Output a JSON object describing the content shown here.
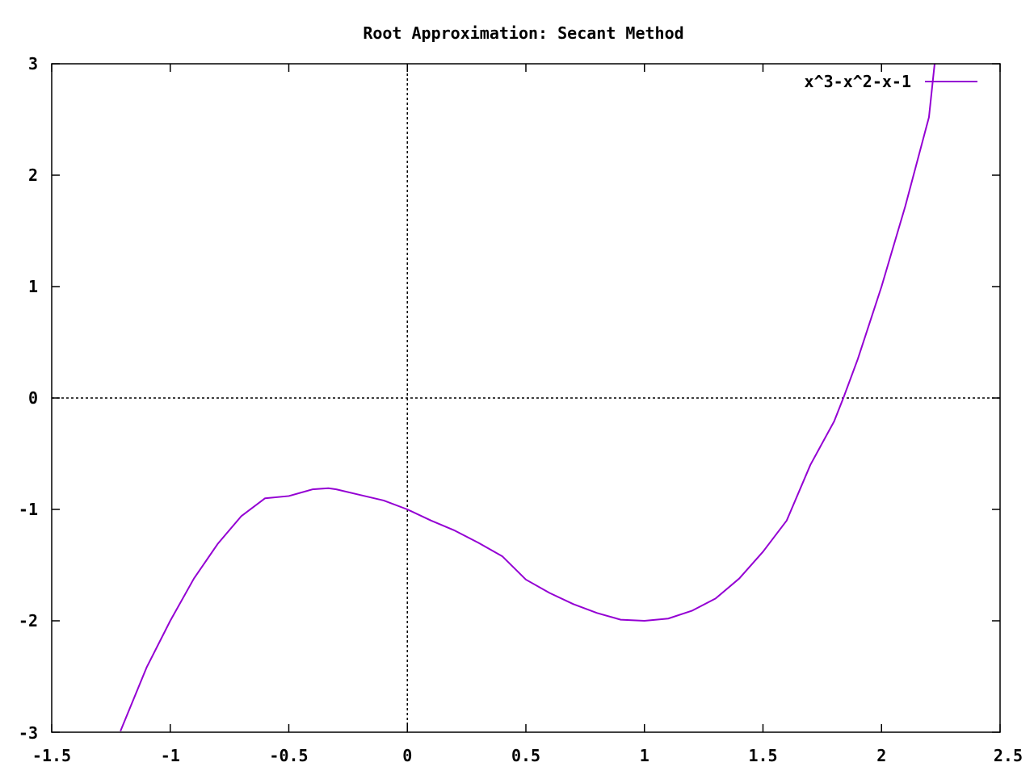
{
  "chart_data": {
    "type": "line",
    "title": "Root Approximation: Secant Method",
    "xlabel": "",
    "ylabel": "",
    "xlim": [
      -1.5,
      2.5
    ],
    "ylim": [
      -3,
      3
    ],
    "x_ticks": [
      -1.5,
      -1,
      -0.5,
      0,
      0.5,
      1,
      1.5,
      2,
      2.5
    ],
    "x_tick_labels": [
      "-1.5",
      "-1",
      "-0.5",
      "0",
      "0.5",
      "1",
      "1.5",
      "2",
      "2.5"
    ],
    "y_ticks": [
      -3,
      -2,
      -1,
      0,
      1,
      2,
      3
    ],
    "y_tick_labels": [
      "-3",
      "-2",
      "-1",
      "0",
      "1",
      "2",
      "3"
    ],
    "grid": false,
    "zero_axes": true,
    "legend_position": "top-right",
    "series": [
      {
        "name": "x^3-x^2-x-1",
        "color": "#9400d3",
        "x": [
          -1.21,
          -1.1,
          -1.0,
          -0.9,
          -0.8,
          -0.7,
          -0.6,
          -0.5,
          -0.4,
          -0.333,
          -0.3,
          -0.2,
          -0.1,
          0.0,
          0.1,
          0.2,
          0.3,
          0.4,
          0.5,
          0.6,
          0.7,
          0.8,
          0.9,
          1.0,
          1.1,
          1.2,
          1.3,
          1.4,
          1.5,
          1.6,
          1.7,
          1.8,
          1.839,
          1.9,
          2.0,
          2.1,
          2.2,
          2.224
        ],
        "y": [
          -2.99,
          -2.42,
          -2.0,
          -1.62,
          -1.31,
          -1.06,
          -0.9,
          -0.88,
          -0.82,
          -0.81,
          -0.82,
          -0.87,
          -0.92,
          -1.0,
          -1.1,
          -1.19,
          -1.3,
          -1.42,
          -1.63,
          -1.75,
          -1.85,
          -1.93,
          -1.99,
          -2.0,
          -1.98,
          -1.91,
          -1.8,
          -1.62,
          -1.38,
          -1.1,
          -0.6,
          -0.21,
          0.0,
          0.35,
          1.0,
          1.72,
          2.52,
          3.0
        ]
      }
    ]
  }
}
